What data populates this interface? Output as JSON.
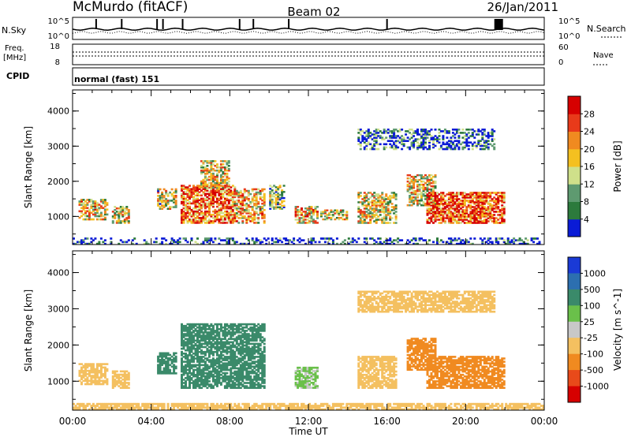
{
  "header": {
    "station": "McMurdo (fitACF)",
    "beam": "Beam 02",
    "date": "26/Jan/2011"
  },
  "noise_panel": {
    "left_label": "N.Sky",
    "right_label": "N.Search",
    "left_ticks": [
      "10^5",
      "10^0"
    ],
    "right_ticks": [
      "10^5",
      "10^0"
    ]
  },
  "freq_panel": {
    "left_label_top": "Freq.",
    "left_label_unit": "[MHz]",
    "left_ticks": [
      "18",
      "8"
    ],
    "right_label": "Nave",
    "right_ticks": [
      "60",
      "0"
    ]
  },
  "cpid_panel": {
    "label": "CPID",
    "text": "normal (fast) 151"
  },
  "chart_data": [
    {
      "type": "heatmap",
      "name": "power-panel",
      "ylabel": "Slant Range [km]",
      "y_ticks": [
        "1000",
        "2000",
        "3000",
        "4000"
      ],
      "ylim": [
        200,
        4600
      ],
      "xlim": [
        0,
        24
      ],
      "colorbar": {
        "label": "Power [dB]",
        "ticks": [
          "4",
          "8",
          "12",
          "16",
          "20",
          "24",
          "28"
        ],
        "colors": [
          "#0a1bd6",
          "#2c7a3c",
          "#5e9a70",
          "#cfe08a",
          "#f4c020",
          "#f08a20",
          "#e83a1a",
          "#d60000"
        ]
      },
      "regions": [
        {
          "t0": 0.3,
          "t1": 1.8,
          "r0": 900,
          "r1": 1500,
          "level": 0.55
        },
        {
          "t0": 2.0,
          "t1": 2.9,
          "r0": 800,
          "r1": 1300,
          "level": 0.5
        },
        {
          "t0": 4.3,
          "t1": 5.3,
          "r0": 1200,
          "r1": 1800,
          "level": 0.45
        },
        {
          "t0": 5.5,
          "t1": 8.3,
          "r0": 800,
          "r1": 1900,
          "level": 0.75
        },
        {
          "t0": 6.5,
          "t1": 8.0,
          "r0": 1800,
          "r1": 2600,
          "level": 0.5
        },
        {
          "t0": 8.2,
          "t1": 9.8,
          "r0": 800,
          "r1": 1800,
          "level": 0.55
        },
        {
          "t0": 10.0,
          "t1": 10.8,
          "r0": 1200,
          "r1": 1900,
          "level": 0.4
        },
        {
          "t0": 11.3,
          "t1": 12.5,
          "r0": 800,
          "r1": 1300,
          "level": 0.6
        },
        {
          "t0": 12.6,
          "t1": 14.0,
          "r0": 900,
          "r1": 1200,
          "level": 0.45
        },
        {
          "t0": 14.5,
          "t1": 16.5,
          "r0": 800,
          "r1": 1700,
          "level": 0.5
        },
        {
          "t0": 17.0,
          "t1": 18.5,
          "r0": 1300,
          "r1": 2200,
          "level": 0.5
        },
        {
          "t0": 18.0,
          "t1": 22.0,
          "r0": 800,
          "r1": 1700,
          "level": 0.8
        },
        {
          "t0": 14.5,
          "t1": 21.5,
          "r0": 2900,
          "r1": 3500,
          "level": 0.15
        },
        {
          "t0": 0.0,
          "t1": 24.0,
          "r0": 200,
          "r1": 400,
          "level": 0.05
        }
      ]
    },
    {
      "type": "heatmap",
      "name": "velocity-panel",
      "ylabel": "Slant Range [km]",
      "y_ticks": [
        "1000",
        "2000",
        "3000",
        "4000"
      ],
      "ylim": [
        200,
        4600
      ],
      "xlim": [
        0,
        24
      ],
      "colorbar": {
        "label": "Velocity [m s^-1]",
        "ticks": [
          "1000",
          "500",
          "100",
          "25",
          "-25",
          "-100",
          "-500",
          "-1000"
        ],
        "colors": [
          "#1a3ad6",
          "#2c6fb0",
          "#3a8a6a",
          "#6ac04a",
          "#c8c8c8",
          "#f4c060",
          "#f08a20",
          "#e84a1a",
          "#d60000"
        ]
      },
      "regions": [
        {
          "t0": 0.3,
          "t1": 1.8,
          "r0": 900,
          "r1": 1500,
          "v": -100
        },
        {
          "t0": 2.0,
          "t1": 2.9,
          "r0": 800,
          "r1": 1300,
          "v": -100
        },
        {
          "t0": 4.3,
          "t1": 5.3,
          "r0": 1200,
          "r1": 1800,
          "v": 300
        },
        {
          "t0": 5.5,
          "t1": 9.8,
          "r0": 800,
          "r1": 2600,
          "v": 300
        },
        {
          "t0": 11.3,
          "t1": 12.5,
          "r0": 800,
          "r1": 1400,
          "v": 60
        },
        {
          "t0": 14.5,
          "t1": 16.5,
          "r0": 800,
          "r1": 1700,
          "v": -60
        },
        {
          "t0": 17.0,
          "t1": 18.5,
          "r0": 1300,
          "r1": 2200,
          "v": -300
        },
        {
          "t0": 18.0,
          "t1": 22.0,
          "r0": 800,
          "r1": 1700,
          "v": -300
        },
        {
          "t0": 14.5,
          "t1": 21.5,
          "r0": 2900,
          "r1": 3500,
          "v": -60
        },
        {
          "t0": 0.0,
          "t1": 24.0,
          "r0": 200,
          "r1": 400,
          "v": -60
        }
      ]
    }
  ],
  "x_axis": {
    "label": "Time UT",
    "ticks": [
      "00:00",
      "04:00",
      "08:00",
      "12:00",
      "16:00",
      "20:00",
      "00:00"
    ]
  }
}
